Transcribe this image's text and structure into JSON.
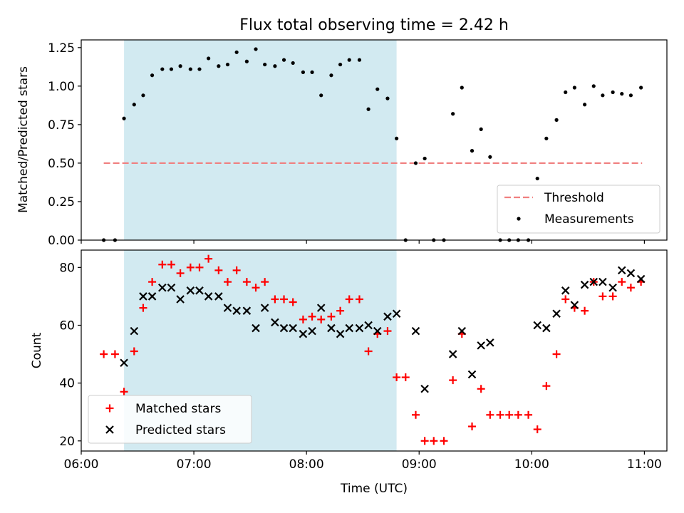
{
  "chart_data": [
    {
      "type": "scatter",
      "title": "Flux total observing time = 2.42 h",
      "xlabel": "",
      "ylabel": "Matched/Predicted stars",
      "xlim": [
        6.0,
        11.2
      ],
      "ylim": [
        0.0,
        1.3
      ],
      "grid": false,
      "legend_position": "lower-right",
      "shaded_span": {
        "x_start": 6.38,
        "x_end": 8.8,
        "color": "#add8e6"
      },
      "xticks": [
        {
          "value": 6.0,
          "label": ""
        },
        {
          "value": 7.0,
          "label": ""
        },
        {
          "value": 8.0,
          "label": ""
        },
        {
          "value": 9.0,
          "label": ""
        },
        {
          "value": 10.0,
          "label": ""
        },
        {
          "value": 11.0,
          "label": ""
        }
      ],
      "yticks": [
        {
          "value": 0.0,
          "label": "0.00"
        },
        {
          "value": 0.25,
          "label": "0.25"
        },
        {
          "value": 0.5,
          "label": "0.50"
        },
        {
          "value": 0.75,
          "label": "0.75"
        },
        {
          "value": 1.0,
          "label": "1.00"
        },
        {
          "value": 1.25,
          "label": "1.25"
        }
      ],
      "threshold": {
        "name": "Threshold",
        "value": 0.5,
        "x_start": 6.2,
        "x_end": 10.98,
        "color": "#f08080"
      },
      "series": [
        {
          "name": "Measurements",
          "color": "#000000",
          "marker": "dot",
          "points": [
            [
              6.2,
              0.0
            ],
            [
              6.3,
              0.0
            ],
            [
              6.38,
              0.79
            ],
            [
              6.47,
              0.88
            ],
            [
              6.55,
              0.94
            ],
            [
              6.63,
              1.07
            ],
            [
              6.72,
              1.11
            ],
            [
              6.8,
              1.11
            ],
            [
              6.88,
              1.13
            ],
            [
              6.97,
              1.11
            ],
            [
              7.05,
              1.11
            ],
            [
              7.13,
              1.18
            ],
            [
              7.22,
              1.13
            ],
            [
              7.3,
              1.14
            ],
            [
              7.38,
              1.22
            ],
            [
              7.47,
              1.16
            ],
            [
              7.55,
              1.24
            ],
            [
              7.63,
              1.14
            ],
            [
              7.72,
              1.13
            ],
            [
              7.8,
              1.17
            ],
            [
              7.88,
              1.15
            ],
            [
              7.97,
              1.09
            ],
            [
              8.05,
              1.09
            ],
            [
              8.13,
              0.94
            ],
            [
              8.22,
              1.07
            ],
            [
              8.3,
              1.14
            ],
            [
              8.38,
              1.17
            ],
            [
              8.47,
              1.17
            ],
            [
              8.55,
              0.85
            ],
            [
              8.63,
              0.98
            ],
            [
              8.72,
              0.92
            ],
            [
              8.8,
              0.66
            ],
            [
              8.88,
              0.0
            ],
            [
              8.97,
              0.5
            ],
            [
              9.05,
              0.53
            ],
            [
              9.13,
              0.0
            ],
            [
              9.22,
              0.0
            ],
            [
              9.3,
              0.82
            ],
            [
              9.38,
              0.99
            ],
            [
              9.47,
              0.58
            ],
            [
              9.55,
              0.72
            ],
            [
              9.63,
              0.54
            ],
            [
              9.72,
              0.0
            ],
            [
              9.8,
              0.0
            ],
            [
              9.88,
              0.0
            ],
            [
              9.97,
              0.0
            ],
            [
              10.05,
              0.4
            ],
            [
              10.13,
              0.66
            ],
            [
              10.22,
              0.78
            ],
            [
              10.3,
              0.96
            ],
            [
              10.38,
              0.99
            ],
            [
              10.47,
              0.88
            ],
            [
              10.55,
              1.0
            ],
            [
              10.63,
              0.94
            ],
            [
              10.72,
              0.96
            ],
            [
              10.8,
              0.95
            ],
            [
              10.88,
              0.94
            ],
            [
              10.97,
              0.99
            ]
          ]
        }
      ]
    },
    {
      "type": "scatter",
      "title": "",
      "xlabel": "Time (UTC)",
      "ylabel": "Count",
      "xlim": [
        6.0,
        11.2
      ],
      "ylim": [
        16.5,
        86.0
      ],
      "grid": false,
      "legend_position": "lower-left",
      "shaded_span": {
        "x_start": 6.38,
        "x_end": 8.8,
        "color": "#add8e6"
      },
      "xticks": [
        {
          "value": 6.0,
          "label": "06:00"
        },
        {
          "value": 7.0,
          "label": "07:00"
        },
        {
          "value": 8.0,
          "label": "08:00"
        },
        {
          "value": 9.0,
          "label": "09:00"
        },
        {
          "value": 10.0,
          "label": "10:00"
        },
        {
          "value": 11.0,
          "label": "11:00"
        }
      ],
      "yticks": [
        {
          "value": 20,
          "label": "20"
        },
        {
          "value": 40,
          "label": "40"
        },
        {
          "value": 60,
          "label": "60"
        },
        {
          "value": 80,
          "label": "80"
        }
      ],
      "series": [
        {
          "name": "Matched stars",
          "color": "#ff0000",
          "marker": "plus",
          "points": [
            [
              6.2,
              50
            ],
            [
              6.3,
              50
            ],
            [
              6.38,
              37
            ],
            [
              6.47,
              51
            ],
            [
              6.55,
              66
            ],
            [
              6.63,
              75
            ],
            [
              6.72,
              81
            ],
            [
              6.8,
              81
            ],
            [
              6.88,
              78
            ],
            [
              6.97,
              80
            ],
            [
              7.05,
              80
            ],
            [
              7.13,
              83
            ],
            [
              7.22,
              79
            ],
            [
              7.3,
              75
            ],
            [
              7.38,
              79
            ],
            [
              7.47,
              75
            ],
            [
              7.55,
              73
            ],
            [
              7.63,
              75
            ],
            [
              7.72,
              69
            ],
            [
              7.8,
              69
            ],
            [
              7.88,
              68
            ],
            [
              7.97,
              62
            ],
            [
              8.05,
              63
            ],
            [
              8.13,
              62
            ],
            [
              8.22,
              63
            ],
            [
              8.3,
              65
            ],
            [
              8.38,
              69
            ],
            [
              8.47,
              69
            ],
            [
              8.55,
              51
            ],
            [
              8.63,
              57
            ],
            [
              8.72,
              58
            ],
            [
              8.8,
              42
            ],
            [
              8.88,
              42
            ],
            [
              8.97,
              29
            ],
            [
              9.05,
              20
            ],
            [
              9.13,
              20
            ],
            [
              9.22,
              20
            ],
            [
              9.3,
              41
            ],
            [
              9.38,
              57
            ],
            [
              9.47,
              25
            ],
            [
              9.55,
              38
            ],
            [
              9.63,
              29
            ],
            [
              9.72,
              29
            ],
            [
              9.8,
              29
            ],
            [
              9.88,
              29
            ],
            [
              9.97,
              29
            ],
            [
              10.05,
              24
            ],
            [
              10.13,
              39
            ],
            [
              10.22,
              50
            ],
            [
              10.3,
              69
            ],
            [
              10.38,
              66
            ],
            [
              10.47,
              65
            ],
            [
              10.55,
              75
            ],
            [
              10.63,
              70
            ],
            [
              10.72,
              70
            ],
            [
              10.8,
              75
            ],
            [
              10.88,
              73
            ],
            [
              10.97,
              75
            ]
          ]
        },
        {
          "name": "Predicted stars",
          "color": "#000000",
          "marker": "x",
          "points": [
            [
              6.38,
              47
            ],
            [
              6.47,
              58
            ],
            [
              6.55,
              70
            ],
            [
              6.63,
              70
            ],
            [
              6.72,
              73
            ],
            [
              6.8,
              73
            ],
            [
              6.88,
              69
            ],
            [
              6.97,
              72
            ],
            [
              7.05,
              72
            ],
            [
              7.13,
              70
            ],
            [
              7.22,
              70
            ],
            [
              7.3,
              66
            ],
            [
              7.38,
              65
            ],
            [
              7.47,
              65
            ],
            [
              7.55,
              59
            ],
            [
              7.63,
              66
            ],
            [
              7.72,
              61
            ],
            [
              7.8,
              59
            ],
            [
              7.88,
              59
            ],
            [
              7.97,
              57
            ],
            [
              8.05,
              58
            ],
            [
              8.13,
              66
            ],
            [
              8.22,
              59
            ],
            [
              8.3,
              57
            ],
            [
              8.38,
              59
            ],
            [
              8.47,
              59
            ],
            [
              8.55,
              60
            ],
            [
              8.63,
              58
            ],
            [
              8.72,
              63
            ],
            [
              8.8,
              64
            ],
            [
              8.97,
              58
            ],
            [
              9.05,
              38
            ],
            [
              9.3,
              50
            ],
            [
              9.38,
              58
            ],
            [
              9.47,
              43
            ],
            [
              9.55,
              53
            ],
            [
              9.63,
              54
            ],
            [
              10.05,
              60
            ],
            [
              10.13,
              59
            ],
            [
              10.22,
              64
            ],
            [
              10.3,
              72
            ],
            [
              10.38,
              67
            ],
            [
              10.47,
              74
            ],
            [
              10.55,
              75
            ],
            [
              10.63,
              75
            ],
            [
              10.72,
              73
            ],
            [
              10.8,
              79
            ],
            [
              10.88,
              78
            ],
            [
              10.97,
              76
            ]
          ]
        }
      ]
    }
  ]
}
